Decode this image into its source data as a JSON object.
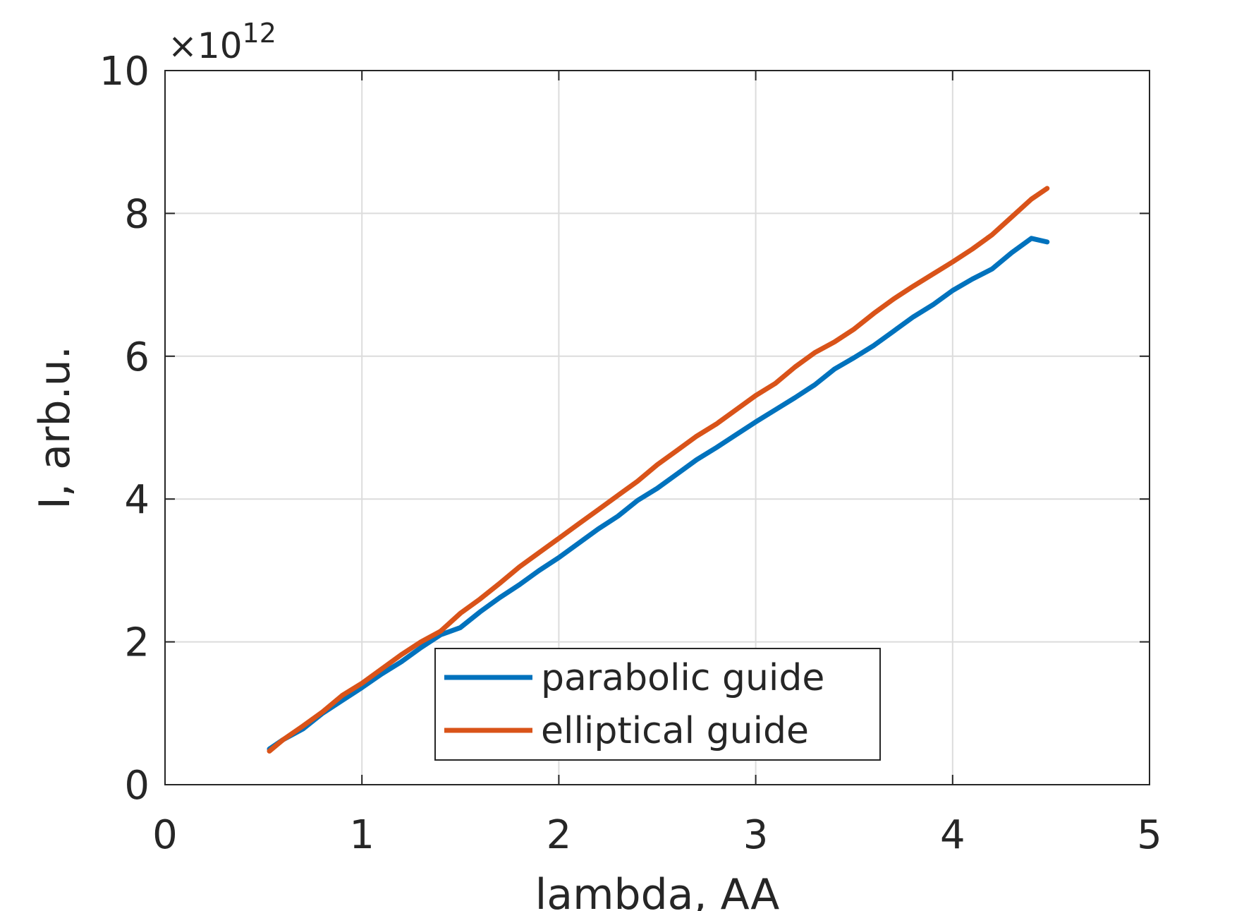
{
  "chart_data": {
    "type": "line",
    "xlabel": "lambda, AA",
    "ylabel": "I, arb.u.",
    "xlim": [
      0,
      5
    ],
    "ylim": [
      0,
      10
    ],
    "x_ticks": [
      "0",
      "1",
      "2",
      "3",
      "4",
      "5"
    ],
    "y_ticks": [
      "0",
      "2",
      "4",
      "6",
      "8",
      "10"
    ],
    "y_exponent": {
      "base": "×10",
      "power": "12"
    },
    "y_scale_note": "y values in units of 1e12",
    "grid": true,
    "legend_position": "bottom-center",
    "series": [
      {
        "name": "parabolic guide",
        "color": "#0072BD",
        "x": [
          0.53,
          0.6,
          0.7,
          0.8,
          0.9,
          1.0,
          1.1,
          1.2,
          1.3,
          1.4,
          1.5,
          1.6,
          1.7,
          1.8,
          1.9,
          2.0,
          2.1,
          2.2,
          2.3,
          2.4,
          2.5,
          2.6,
          2.7,
          2.8,
          2.9,
          3.0,
          3.1,
          3.2,
          3.3,
          3.4,
          3.5,
          3.6,
          3.7,
          3.8,
          3.9,
          4.0,
          4.1,
          4.2,
          4.3,
          4.4,
          4.48
        ],
        "y": [
          0.5,
          0.63,
          0.78,
          1.0,
          1.18,
          1.36,
          1.55,
          1.72,
          1.92,
          2.1,
          2.2,
          2.42,
          2.62,
          2.8,
          3.0,
          3.18,
          3.38,
          3.58,
          3.76,
          3.98,
          4.15,
          4.35,
          4.55,
          4.72,
          4.9,
          5.08,
          5.25,
          5.42,
          5.6,
          5.82,
          5.98,
          6.15,
          6.35,
          6.55,
          6.72,
          6.92,
          7.08,
          7.22,
          7.45,
          7.65,
          7.6
        ]
      },
      {
        "name": "elliptical guide",
        "color": "#D95319",
        "x": [
          0.53,
          0.6,
          0.7,
          0.8,
          0.9,
          1.0,
          1.1,
          1.2,
          1.3,
          1.4,
          1.5,
          1.6,
          1.7,
          1.8,
          1.9,
          2.0,
          2.1,
          2.2,
          2.3,
          2.4,
          2.5,
          2.6,
          2.7,
          2.8,
          2.9,
          3.0,
          3.1,
          3.2,
          3.3,
          3.4,
          3.5,
          3.6,
          3.7,
          3.8,
          3.9,
          4.0,
          4.1,
          4.2,
          4.3,
          4.4,
          4.48
        ],
        "y": [
          0.47,
          0.63,
          0.82,
          1.02,
          1.25,
          1.42,
          1.62,
          1.82,
          2.0,
          2.15,
          2.4,
          2.6,
          2.82,
          3.05,
          3.25,
          3.45,
          3.65,
          3.85,
          4.05,
          4.25,
          4.48,
          4.68,
          4.88,
          5.05,
          5.25,
          5.45,
          5.62,
          5.85,
          6.05,
          6.2,
          6.38,
          6.6,
          6.8,
          6.98,
          7.15,
          7.32,
          7.5,
          7.7,
          7.95,
          8.2,
          8.35
        ]
      }
    ]
  }
}
